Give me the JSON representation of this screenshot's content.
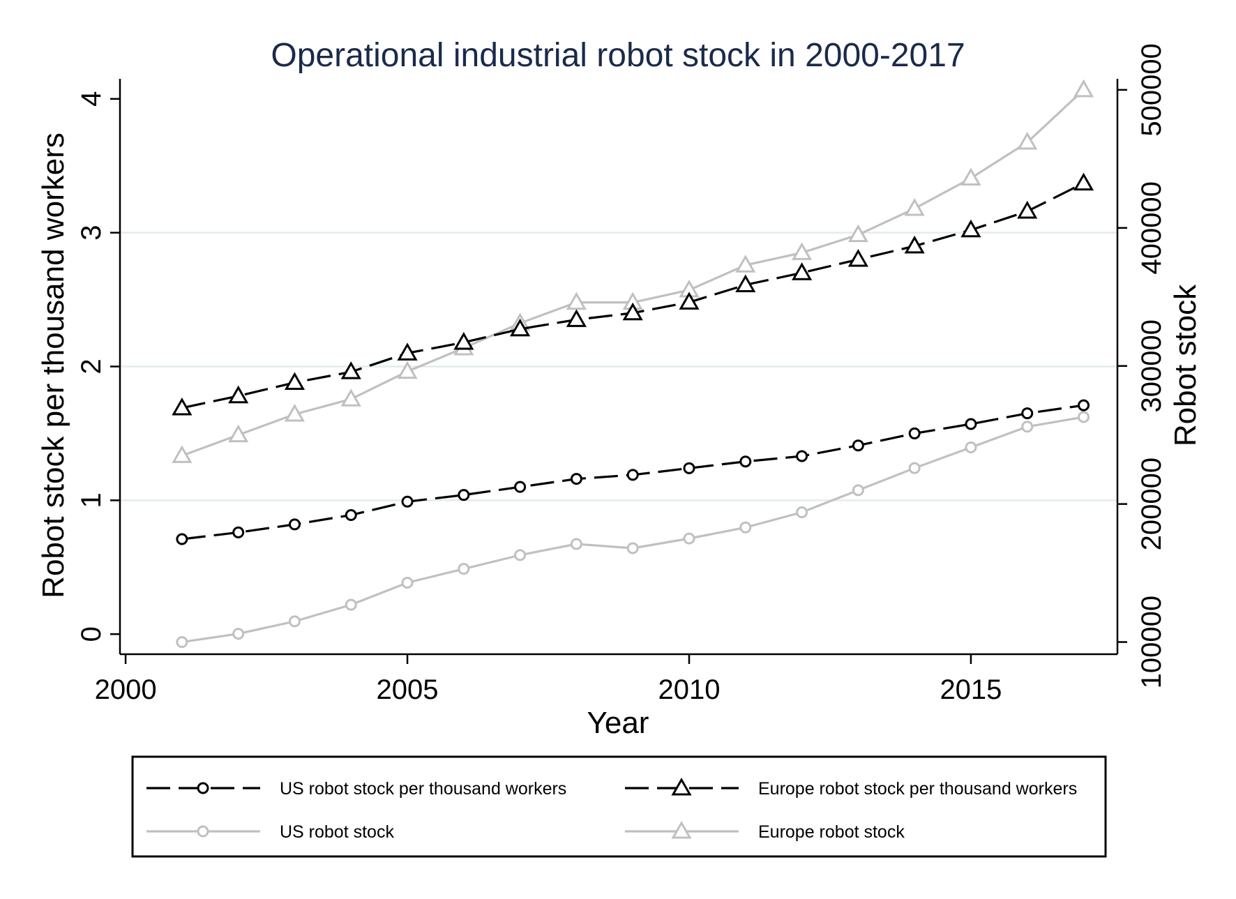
{
  "chart_data": {
    "type": "line",
    "title": "Operational industrial robot stock in 2000-2017",
    "xlabel": "Year",
    "ylabel_left": "Robot stock per thousand workers",
    "ylabel_right": "Robot stock",
    "xlim": [
      1999.9,
      2017.6
    ],
    "ylim_left": [
      -0.15,
      4.15
    ],
    "ylim_right": [
      91200,
      508000
    ],
    "x_ticks": [
      2000,
      2005,
      2010,
      2015
    ],
    "y_ticks_left": [
      0,
      1,
      2,
      3,
      4
    ],
    "y_ticks_right": [
      100000,
      200000,
      300000,
      400000,
      500000
    ],
    "grid": "horizontal gridlines at left-axis ticks 1, 2, 3",
    "legend_position": "bottom",
    "x": [
      2001,
      2002,
      2003,
      2004,
      2005,
      2006,
      2007,
      2008,
      2009,
      2010,
      2011,
      2012,
      2013,
      2014,
      2015,
      2016,
      2017
    ],
    "series": [
      {
        "name": "US robot stock per thousand workers",
        "axis": "left",
        "color": "#000000",
        "dash": "dashed",
        "marker": "circle",
        "values": [
          0.71,
          0.76,
          0.82,
          0.89,
          0.99,
          1.04,
          1.1,
          1.16,
          1.19,
          1.24,
          1.29,
          1.33,
          1.41,
          1.5,
          1.57,
          1.65,
          1.71
        ]
      },
      {
        "name": "Europe robot stock per thousand workers",
        "axis": "left",
        "color": "#000000",
        "dash": "dashed",
        "marker": "triangle",
        "values": [
          1.69,
          1.78,
          1.88,
          1.96,
          2.1,
          2.18,
          2.28,
          2.35,
          2.4,
          2.48,
          2.61,
          2.7,
          2.8,
          2.9,
          3.02,
          3.16,
          3.37
        ]
      },
      {
        "name": "US robot stock",
        "axis": "right",
        "color": "#c0c0c0",
        "dash": "solid",
        "marker": "circle",
        "values": [
          100000,
          106000,
          115000,
          127000,
          143000,
          153000,
          163000,
          171000,
          168000,
          175000,
          183000,
          194000,
          210000,
          226000,
          241000,
          256000,
          263000
        ]
      },
      {
        "name": "Europe robot stock",
        "axis": "right",
        "color": "#c0c0c0",
        "dash": "solid",
        "marker": "triangle",
        "values": [
          235000,
          250000,
          265000,
          276000,
          296000,
          313000,
          331000,
          346000,
          346000,
          355000,
          373000,
          382000,
          395000,
          414000,
          436000,
          462000,
          500000
        ]
      }
    ]
  }
}
